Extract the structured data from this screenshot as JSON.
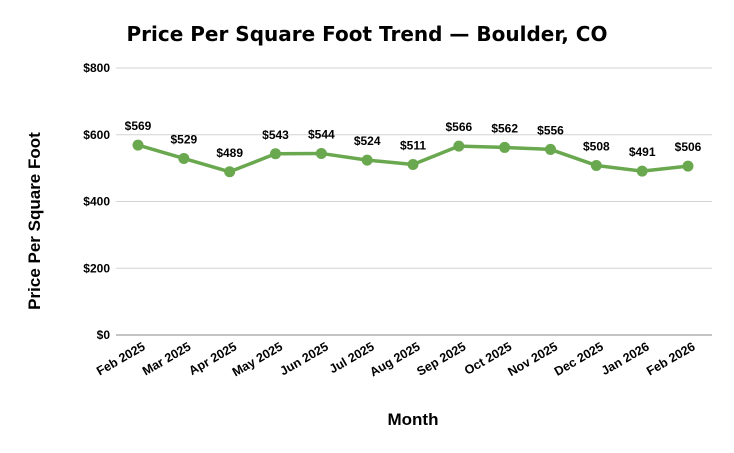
{
  "chart_data": {
    "type": "line",
    "title": "Price Per Square Foot Trend — Boulder, CO",
    "xlabel": "Month",
    "ylabel": "Price Per Square Foot",
    "categories": [
      "Feb 2025",
      "Mar 2025",
      "Apr 2025",
      "May 2025",
      "Jun 2025",
      "Jul 2025",
      "Aug 2025",
      "Sep 2025",
      "Oct 2025",
      "Nov 2025",
      "Dec 2025",
      "Jan 2026",
      "Feb 2026"
    ],
    "series": [
      {
        "values": [
          569,
          529,
          489,
          543,
          544,
          524,
          511,
          566,
          562,
          556,
          508,
          491,
          506
        ],
        "data_labels": [
          "$569",
          "$529",
          "$489",
          "$543",
          "$544",
          "$524",
          "$511",
          "$566",
          "$562",
          "$556",
          "$508",
          "$491",
          "$506"
        ]
      }
    ],
    "ylim": [
      0,
      800
    ],
    "yticks": [
      0,
      200,
      400,
      600,
      800
    ],
    "ytick_labels": [
      "$0",
      "$200",
      "$400",
      "$600",
      "$800"
    ],
    "grid": true,
    "colors": {
      "line": "#6aa84f",
      "grid": "#d3d3d3",
      "axis": "#888888"
    }
  }
}
